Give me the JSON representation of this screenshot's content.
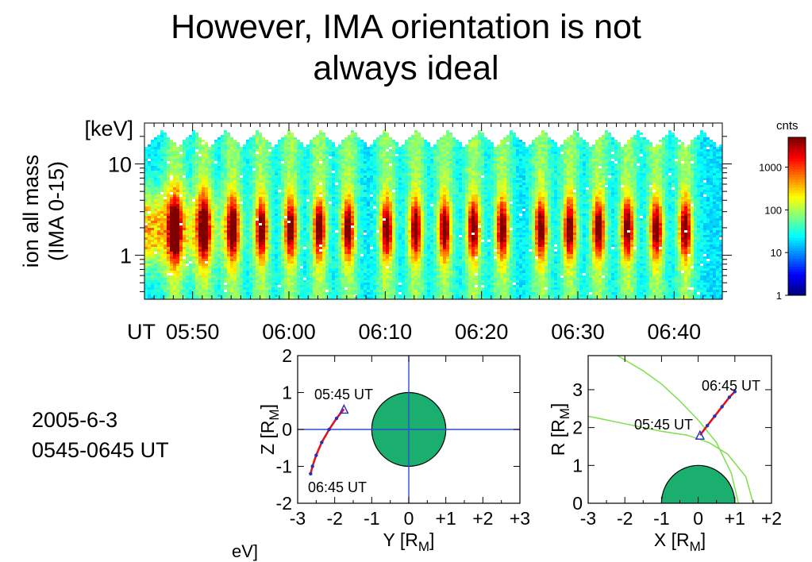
{
  "slide": {
    "title_line1": "However, IMA orientation is not",
    "title_line2": "always ideal",
    "date": "2005-6-3",
    "time_range": "0545-0645 UT",
    "cutoff_label": "eV]"
  },
  "colorbar": {
    "label": "cnts",
    "ticks": [
      "1000",
      "100",
      "10",
      "1"
    ],
    "tick_values": [
      1000,
      100,
      10,
      1
    ]
  },
  "chart_data": [
    {
      "type": "heatmap",
      "ylabel": "ion all mass (IMA 0-15)",
      "ylabel_line1": "ion all mass",
      "ylabel_line2": "(IMA 0-15)",
      "yunit": "[keV]",
      "y_ticks": [
        "10",
        "1"
      ],
      "y_tick_values": [
        10,
        1
      ],
      "y_scale": "log",
      "x_prefix": "UT",
      "x_ticks": [
        "05:50",
        "06:00",
        "06:10",
        "06:20",
        "06:30",
        "06:40"
      ],
      "x_tick_minutes": [
        350,
        360,
        370,
        380,
        390,
        400
      ],
      "x_range": [
        "05:45",
        "06:45"
      ],
      "peak_energy_keV": 2,
      "peak_times": [
        "05:48",
        "05:51",
        "05:54",
        "05:57",
        "06:00",
        "06:03",
        "06:06",
        "06:10",
        "06:13",
        "06:16",
        "06:19",
        "06:22",
        "06:26",
        "06:29",
        "06:32",
        "06:35",
        "06:38",
        "06:41"
      ],
      "colorscale": "jet"
    },
    {
      "type": "line",
      "xlabel": "Y [R",
      "xlabel_sub": "M",
      "xlabel_end": "]",
      "ylabel": "Z [R",
      "ylabel_sub": "M",
      "ylabel_end": "]",
      "x_ticks": [
        "-3",
        "-2",
        "-1",
        "0",
        "+1",
        "+2",
        "+3"
      ],
      "y_ticks": [
        "2",
        "1",
        "0",
        "-1",
        "-2"
      ],
      "xlim": [
        -3,
        3
      ],
      "ylim": [
        -2,
        2
      ],
      "planet": {
        "center": [
          0,
          0
        ],
        "radius": 1
      },
      "crosshair": true,
      "orbit_x": [
        -1.75,
        -1.95,
        -2.15,
        -2.35,
        -2.5,
        -2.6,
        -2.65
      ],
      "orbit_y": [
        0.55,
        0.3,
        0.0,
        -0.35,
        -0.7,
        -1.0,
        -1.2
      ],
      "start_label": "05:45 UT",
      "end_label": "06:45 UT"
    },
    {
      "type": "line",
      "xlabel": "X [R",
      "xlabel_sub": "M",
      "xlabel_end": "]",
      "ylabel": "R [R",
      "ylabel_sub": "M",
      "ylabel_end": "]",
      "x_ticks": [
        "-3",
        "-2",
        "-1",
        "0",
        "+1",
        "+2"
      ],
      "y_ticks": [
        "3",
        "2",
        "1",
        "0"
      ],
      "xlim": [
        -3,
        2
      ],
      "ylim": [
        0,
        3.9
      ],
      "planet": {
        "center": [
          0,
          0
        ],
        "radius": 1
      },
      "boundaries": [
        {
          "x": [
            -2.2,
            -1.5,
            -1.0,
            -0.5,
            0.0,
            0.5,
            0.9,
            1.1
          ],
          "y": [
            3.9,
            3.5,
            3.15,
            2.7,
            2.2,
            1.6,
            0.8,
            0.0
          ]
        },
        {
          "x": [
            -3.0,
            -2.0,
            -1.0,
            -0.3,
            0.3,
            0.8,
            1.3,
            1.5
          ],
          "y": [
            2.3,
            2.1,
            1.9,
            1.8,
            1.6,
            1.3,
            0.7,
            0.0
          ]
        }
      ],
      "orbit_x": [
        0.05,
        0.25,
        0.45,
        0.65,
        0.85,
        1.0
      ],
      "orbit_y": [
        1.8,
        2.05,
        2.3,
        2.55,
        2.8,
        2.95
      ],
      "start_label": "05:45 UT",
      "end_label": "06:45 UT"
    }
  ]
}
